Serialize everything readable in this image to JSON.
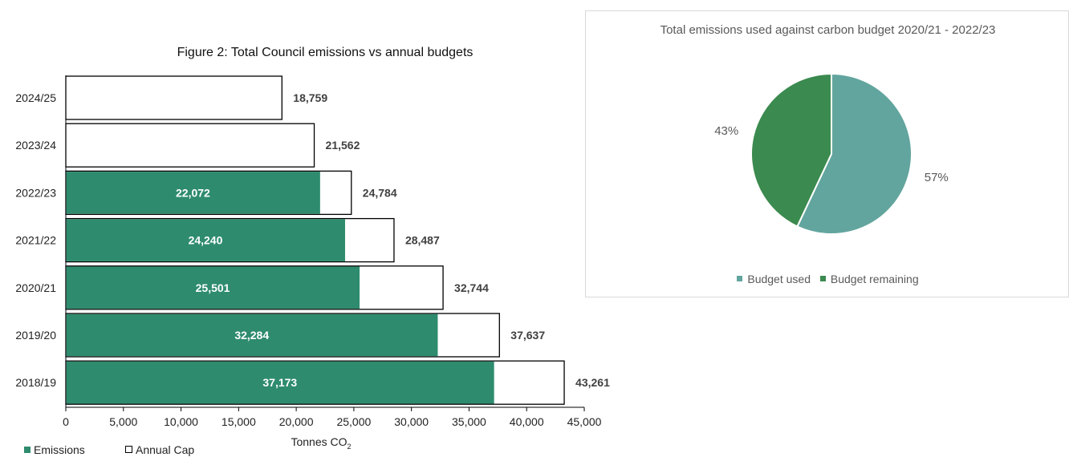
{
  "bar_chart_title": "Figure 2: Total Council emissions vs annual budgets",
  "bar_xlabel_main": "Tonnes CO",
  "bar_xlabel_sub": "2",
  "bar_legend": {
    "emissions": "Emissions",
    "cap": "Annual Cap"
  },
  "pie_title": "Total emissions used against carbon budget 2020/21 - 2022/23",
  "pie_legend": {
    "used": "Budget used",
    "remaining": "Budget remaining"
  },
  "colors": {
    "emissions": "#2e8b6e",
    "cap_fill": "#ffffff",
    "cap_border": "#000000",
    "pie_used": "#62a59e",
    "pie_remaining": "#3b8a4f"
  },
  "chart_data": [
    {
      "type": "bar",
      "orientation": "horizontal",
      "title": "Figure 2: Total Council emissions vs annual budgets",
      "xlabel": "Tonnes CO2",
      "ylabel": "",
      "categories": [
        "2024/25",
        "2023/24",
        "2022/23",
        "2021/22",
        "2020/21",
        "2019/20",
        "2018/19"
      ],
      "series": [
        {
          "name": "Emissions",
          "values": [
            null,
            null,
            22072,
            24240,
            25501,
            32284,
            37173
          ]
        },
        {
          "name": "Annual Cap",
          "values": [
            18759,
            21562,
            24784,
            28487,
            32744,
            37637,
            43261
          ]
        }
      ],
      "emission_labels": [
        "",
        "",
        "22,072",
        "24,240",
        "25,501",
        "32,284",
        "37,173"
      ],
      "cap_labels": [
        "18,759",
        "21,562",
        "24,784",
        "28,487",
        "32,744",
        "37,637",
        "43,261"
      ],
      "xlim": [
        0,
        45000
      ],
      "xticks": [
        0,
        5000,
        10000,
        15000,
        20000,
        25000,
        30000,
        35000,
        40000,
        45000
      ],
      "xtick_labels": [
        "0",
        "5,000",
        "10,000",
        "15,000",
        "20,000",
        "25,000",
        "30,000",
        "35,000",
        "40,000",
        "45,000"
      ],
      "grid": false,
      "legend_position": "bottom-left"
    },
    {
      "type": "pie",
      "title": "Total emissions used against carbon budget 2020/21 - 2022/23",
      "labels": [
        "Budget used",
        "Budget remaining"
      ],
      "values": [
        57,
        43
      ],
      "value_labels": [
        "57%",
        "43%"
      ],
      "legend_position": "bottom"
    }
  ]
}
